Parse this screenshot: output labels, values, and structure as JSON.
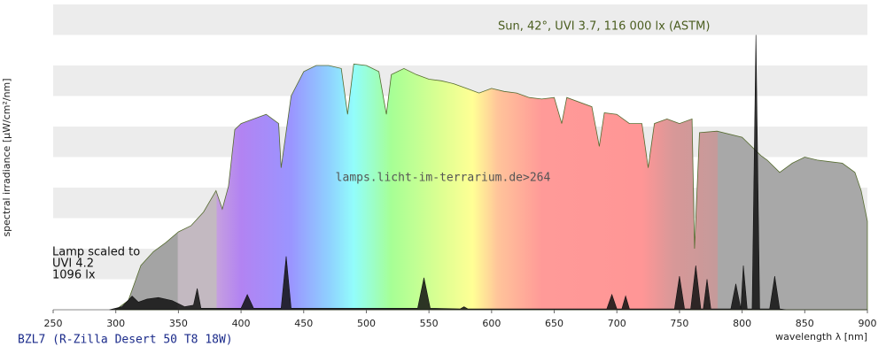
{
  "chart_data": {
    "type": "area",
    "title": "BZL7 (R-Zilla Desert 50 T8 18W)",
    "watermark": "lamps.licht-im-terrarium.de>264",
    "x_label": "wavelength λ [nm]",
    "y_label": "spectral irradiance [µW/cm²/nm]",
    "annotation": [
      "Lamp scaled to",
      "UVI 4.2",
      "1096 lx"
    ],
    "xlim": [
      250,
      900
    ],
    "ylim": [
      0,
      10
    ],
    "xticks": [
      250,
      300,
      350,
      400,
      450,
      500,
      550,
      600,
      650,
      700,
      750,
      800,
      850,
      900
    ],
    "series": [
      {
        "name": "Sun, 42°, UVI 3.7, 116 000 lx (ASTM)",
        "color": "#556b2f",
        "x": [
          300,
          310,
          320,
          330,
          340,
          350,
          360,
          370,
          380,
          385,
          390,
          395,
          400,
          410,
          420,
          430,
          432,
          440,
          450,
          460,
          470,
          480,
          485,
          490,
          500,
          510,
          516,
          520,
          530,
          540,
          550,
          560,
          570,
          580,
          590,
          600,
          610,
          620,
          630,
          640,
          650,
          656,
          660,
          680,
          686,
          690,
          700,
          710,
          720,
          725,
          730,
          740,
          750,
          760,
          762,
          766,
          780,
          800,
          815,
          820,
          830,
          840,
          850,
          860,
          870,
          880,
          890,
          895,
          900
        ],
        "values": [
          0,
          0.3,
          1.45,
          1.9,
          2.2,
          2.55,
          2.75,
          3.2,
          3.9,
          3.3,
          4.05,
          5.9,
          6.1,
          6.25,
          6.4,
          6.1,
          4.65,
          7.0,
          7.8,
          8.0,
          8.0,
          7.9,
          6.4,
          8.05,
          8.0,
          7.8,
          6.4,
          7.7,
          7.9,
          7.7,
          7.55,
          7.5,
          7.4,
          7.25,
          7.1,
          7.25,
          7.15,
          7.1,
          6.95,
          6.9,
          6.95,
          6.1,
          6.95,
          6.65,
          5.35,
          6.45,
          6.4,
          6.1,
          6.1,
          4.65,
          6.1,
          6.25,
          6.1,
          6.25,
          2.0,
          5.8,
          5.85,
          5.65,
          5.05,
          4.9,
          4.5,
          4.8,
          5.0,
          4.9,
          4.85,
          4.8,
          4.5,
          3.9,
          2.9
        ]
      },
      {
        "color": "#111111",
        "x": [
          295,
          305,
          313,
          318,
          325,
          334,
          345,
          355,
          362,
          365,
          368,
          400,
          405,
          410,
          432,
          436,
          440,
          541,
          546,
          551,
          575,
          578,
          581,
          692,
          696,
          700,
          704,
          707,
          710,
          746,
          750,
          754,
          759,
          763,
          767,
          769,
          772,
          775,
          791,
          795,
          799,
          801,
          804,
          808,
          811,
          814,
          818,
          822,
          826,
          830,
          835,
          900
        ],
        "values": [
          0,
          0.1,
          0.45,
          0.25,
          0.35,
          0.4,
          0.3,
          0.1,
          0.15,
          0.7,
          0.05,
          0.05,
          0.5,
          0.05,
          0.05,
          1.75,
          0.05,
          0.05,
          1.05,
          0.05,
          0.03,
          0.1,
          0.03,
          0.03,
          0.5,
          0.03,
          0.03,
          0.45,
          0.03,
          0.03,
          1.1,
          0.03,
          0.03,
          1.45,
          0.03,
          0.03,
          1.0,
          0.03,
          0.03,
          0.85,
          0.03,
          1.45,
          0.03,
          0.03,
          9.0,
          0.03,
          0.03,
          0.03,
          1.1,
          0.03,
          0.0,
          0.0
        ]
      }
    ]
  }
}
